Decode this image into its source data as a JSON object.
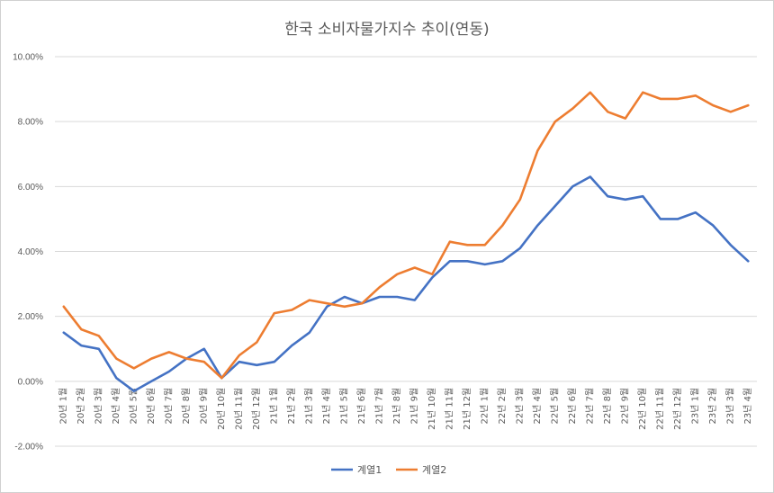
{
  "chart_data": {
    "type": "line",
    "title": "한국 소비자물가지수 추이(연동)",
    "xlabel": "",
    "ylabel": "",
    "ylim": [
      -0.02,
      0.1
    ],
    "yticks": [
      "10.00%",
      "8.00%",
      "6.00%",
      "4.00%",
      "2.00%",
      "0.00%",
      "-2.00%"
    ],
    "grid": true,
    "legend_position": "bottom",
    "categories": [
      "20년 1월",
      "20년 2월",
      "20년 3월",
      "20년 4월",
      "20년 5월",
      "20년 6월",
      "20년 7월",
      "20년 8월",
      "20년 9월",
      "20년 10월",
      "20년 11월",
      "20년 12월",
      "21년 1월",
      "21년 2월",
      "21년 3월",
      "21년 4월",
      "21년 5월",
      "21년 6월",
      "21년 7월",
      "21년 8월",
      "21년 9월",
      "21년 10월",
      "21년 11월",
      "21년 12월",
      "22년 1월",
      "22년 2월",
      "22년 3월",
      "22년 4월",
      "22년 5월",
      "22년 6월",
      "22년 7월",
      "22년 8월",
      "22년 9월",
      "22년 10월",
      "22년 11월",
      "22년 12월",
      "23년 1월",
      "23년 2월",
      "23년 3월",
      "23년 4월"
    ],
    "series": [
      {
        "name": "계열1",
        "color": "#4472C4",
        "values": [
          0.015,
          0.011,
          0.01,
          0.001,
          -0.003,
          0.0,
          0.003,
          0.007,
          0.01,
          0.001,
          0.006,
          0.005,
          0.006,
          0.011,
          0.015,
          0.023,
          0.026,
          0.024,
          0.026,
          0.026,
          0.025,
          0.032,
          0.037,
          0.037,
          0.036,
          0.037,
          0.041,
          0.048,
          0.054,
          0.06,
          0.063,
          0.057,
          0.056,
          0.057,
          0.05,
          0.05,
          0.052,
          0.048,
          0.042,
          0.037
        ]
      },
      {
        "name": "계열2",
        "color": "#ED7D31",
        "values": [
          0.023,
          0.016,
          0.014,
          0.007,
          0.004,
          0.007,
          0.009,
          0.007,
          0.006,
          0.001,
          0.008,
          0.012,
          0.021,
          0.022,
          0.025,
          0.024,
          0.023,
          0.024,
          0.029,
          0.033,
          0.035,
          0.033,
          0.043,
          0.042,
          0.042,
          0.048,
          0.056,
          0.071,
          0.08,
          0.084,
          0.089,
          0.083,
          0.081,
          0.089,
          0.087,
          0.087,
          0.088,
          0.085,
          0.083,
          0.085
        ]
      }
    ]
  }
}
